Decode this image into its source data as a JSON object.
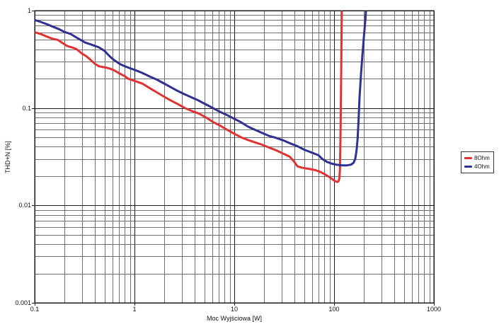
{
  "figure": {
    "background": "#ffffff",
    "grid_minor_color": "#6f6f6f",
    "grid_major_color": "#1a1a1a",
    "axis_color": "#1a1a1a"
  },
  "chart_data": {
    "type": "line",
    "title": "",
    "xlabel": "Moc Wyjściowa [W]",
    "ylabel": "THD+N [%]",
    "x_scale": "log",
    "y_scale": "log",
    "xlim": [
      0.1,
      1000
    ],
    "ylim": [
      0.001,
      1
    ],
    "grid": "on (log minor + major gridlines)",
    "legend_position": "outside-right",
    "x_ticks": [
      {
        "v": 0.1,
        "label": "0.1"
      },
      {
        "v": 1,
        "label": "1"
      },
      {
        "v": 10,
        "label": "10"
      },
      {
        "v": 100,
        "label": "100"
      },
      {
        "v": 1000,
        "label": "1000"
      }
    ],
    "y_ticks": [
      {
        "v": 1,
        "label": "1"
      },
      {
        "v": 0.1,
        "label": "0.1"
      },
      {
        "v": 0.01,
        "label": "0.01"
      },
      {
        "v": 0.001,
        "label": "0.001"
      }
    ],
    "series": [
      {
        "name": "8Ohm",
        "color": "#e03232",
        "points": [
          [
            0.1,
            0.6
          ],
          [
            0.115,
            0.575
          ],
          [
            0.13,
            0.545
          ],
          [
            0.15,
            0.515
          ],
          [
            0.17,
            0.5
          ],
          [
            0.19,
            0.465
          ],
          [
            0.21,
            0.435
          ],
          [
            0.235,
            0.42
          ],
          [
            0.26,
            0.405
          ],
          [
            0.3,
            0.36
          ],
          [
            0.33,
            0.34
          ],
          [
            0.36,
            0.315
          ],
          [
            0.4,
            0.285
          ],
          [
            0.44,
            0.268
          ],
          [
            0.5,
            0.262
          ],
          [
            0.56,
            0.255
          ],
          [
            0.62,
            0.245
          ],
          [
            0.7,
            0.228
          ],
          [
            0.8,
            0.212
          ],
          [
            0.86,
            0.2
          ],
          [
            1.0,
            0.19
          ],
          [
            1.2,
            0.178
          ],
          [
            1.45,
            0.158
          ],
          [
            1.65,
            0.146
          ],
          [
            2.0,
            0.13
          ],
          [
            2.3,
            0.12
          ],
          [
            2.8,
            0.108
          ],
          [
            3.2,
            0.1
          ],
          [
            3.9,
            0.092
          ],
          [
            4.4,
            0.088
          ],
          [
            5.2,
            0.08
          ],
          [
            6.1,
            0.072
          ],
          [
            7.2,
            0.066
          ],
          [
            8.4,
            0.06
          ],
          [
            10,
            0.0545
          ],
          [
            11.7,
            0.05
          ],
          [
            13.7,
            0.047
          ],
          [
            16,
            0.0445
          ],
          [
            19,
            0.042
          ],
          [
            22,
            0.0395
          ],
          [
            26,
            0.037
          ],
          [
            31,
            0.034
          ],
          [
            36,
            0.0316
          ],
          [
            40,
            0.028
          ],
          [
            43,
            0.0252
          ],
          [
            47,
            0.0245
          ],
          [
            52,
            0.024
          ],
          [
            58,
            0.0236
          ],
          [
            65,
            0.023
          ],
          [
            72,
            0.0222
          ],
          [
            80,
            0.021
          ],
          [
            90,
            0.0195
          ],
          [
            98,
            0.0183
          ],
          [
            104,
            0.0176
          ],
          [
            108,
            0.0174
          ],
          [
            111,
            0.0178
          ],
          [
            113,
            0.019
          ],
          [
            114.5,
            0.0235
          ],
          [
            115.5,
            0.038
          ],
          [
            116.5,
            0.08
          ],
          [
            117.5,
            0.18
          ],
          [
            118.5,
            0.42
          ],
          [
            119.5,
            1.08
          ]
        ]
      },
      {
        "name": "4Ohm",
        "color": "#2e3192",
        "points": [
          [
            0.1,
            0.8
          ],
          [
            0.115,
            0.765
          ],
          [
            0.135,
            0.72
          ],
          [
            0.155,
            0.678
          ],
          [
            0.175,
            0.645
          ],
          [
            0.2,
            0.602
          ],
          [
            0.23,
            0.575
          ],
          [
            0.27,
            0.52
          ],
          [
            0.32,
            0.47
          ],
          [
            0.37,
            0.447
          ],
          [
            0.44,
            0.42
          ],
          [
            0.5,
            0.387
          ],
          [
            0.56,
            0.342
          ],
          [
            0.62,
            0.312
          ],
          [
            0.72,
            0.282
          ],
          [
            0.82,
            0.266
          ],
          [
            0.92,
            0.254
          ],
          [
            1.05,
            0.242
          ],
          [
            1.2,
            0.229
          ],
          [
            1.4,
            0.212
          ],
          [
            1.65,
            0.197
          ],
          [
            1.95,
            0.18
          ],
          [
            2.3,
            0.164
          ],
          [
            2.7,
            0.15
          ],
          [
            3.15,
            0.139
          ],
          [
            3.7,
            0.129
          ],
          [
            4.35,
            0.12
          ],
          [
            5.1,
            0.11
          ],
          [
            6.0,
            0.101
          ],
          [
            7.1,
            0.092
          ],
          [
            8.4,
            0.085
          ],
          [
            10,
            0.0775
          ],
          [
            11.8,
            0.071
          ],
          [
            13.7,
            0.0645
          ],
          [
            16,
            0.06
          ],
          [
            19,
            0.0555
          ],
          [
            22,
            0.052
          ],
          [
            26,
            0.0495
          ],
          [
            31,
            0.0465
          ],
          [
            36,
            0.0435
          ],
          [
            43,
            0.0405
          ],
          [
            50,
            0.0374
          ],
          [
            59,
            0.035
          ],
          [
            70,
            0.0327
          ],
          [
            76,
            0.03
          ],
          [
            85,
            0.028
          ],
          [
            95,
            0.0268
          ],
          [
            105,
            0.0262
          ],
          [
            120,
            0.0258
          ],
          [
            135,
            0.0258
          ],
          [
            148,
            0.0262
          ],
          [
            157,
            0.0275
          ],
          [
            163,
            0.03
          ],
          [
            168,
            0.037
          ],
          [
            172,
            0.048
          ],
          [
            176,
            0.075
          ],
          [
            180,
            0.13
          ],
          [
            186,
            0.22
          ],
          [
            193,
            0.37
          ],
          [
            200,
            0.57
          ],
          [
            206,
            0.82
          ],
          [
            210,
            1.08
          ]
        ]
      }
    ]
  }
}
